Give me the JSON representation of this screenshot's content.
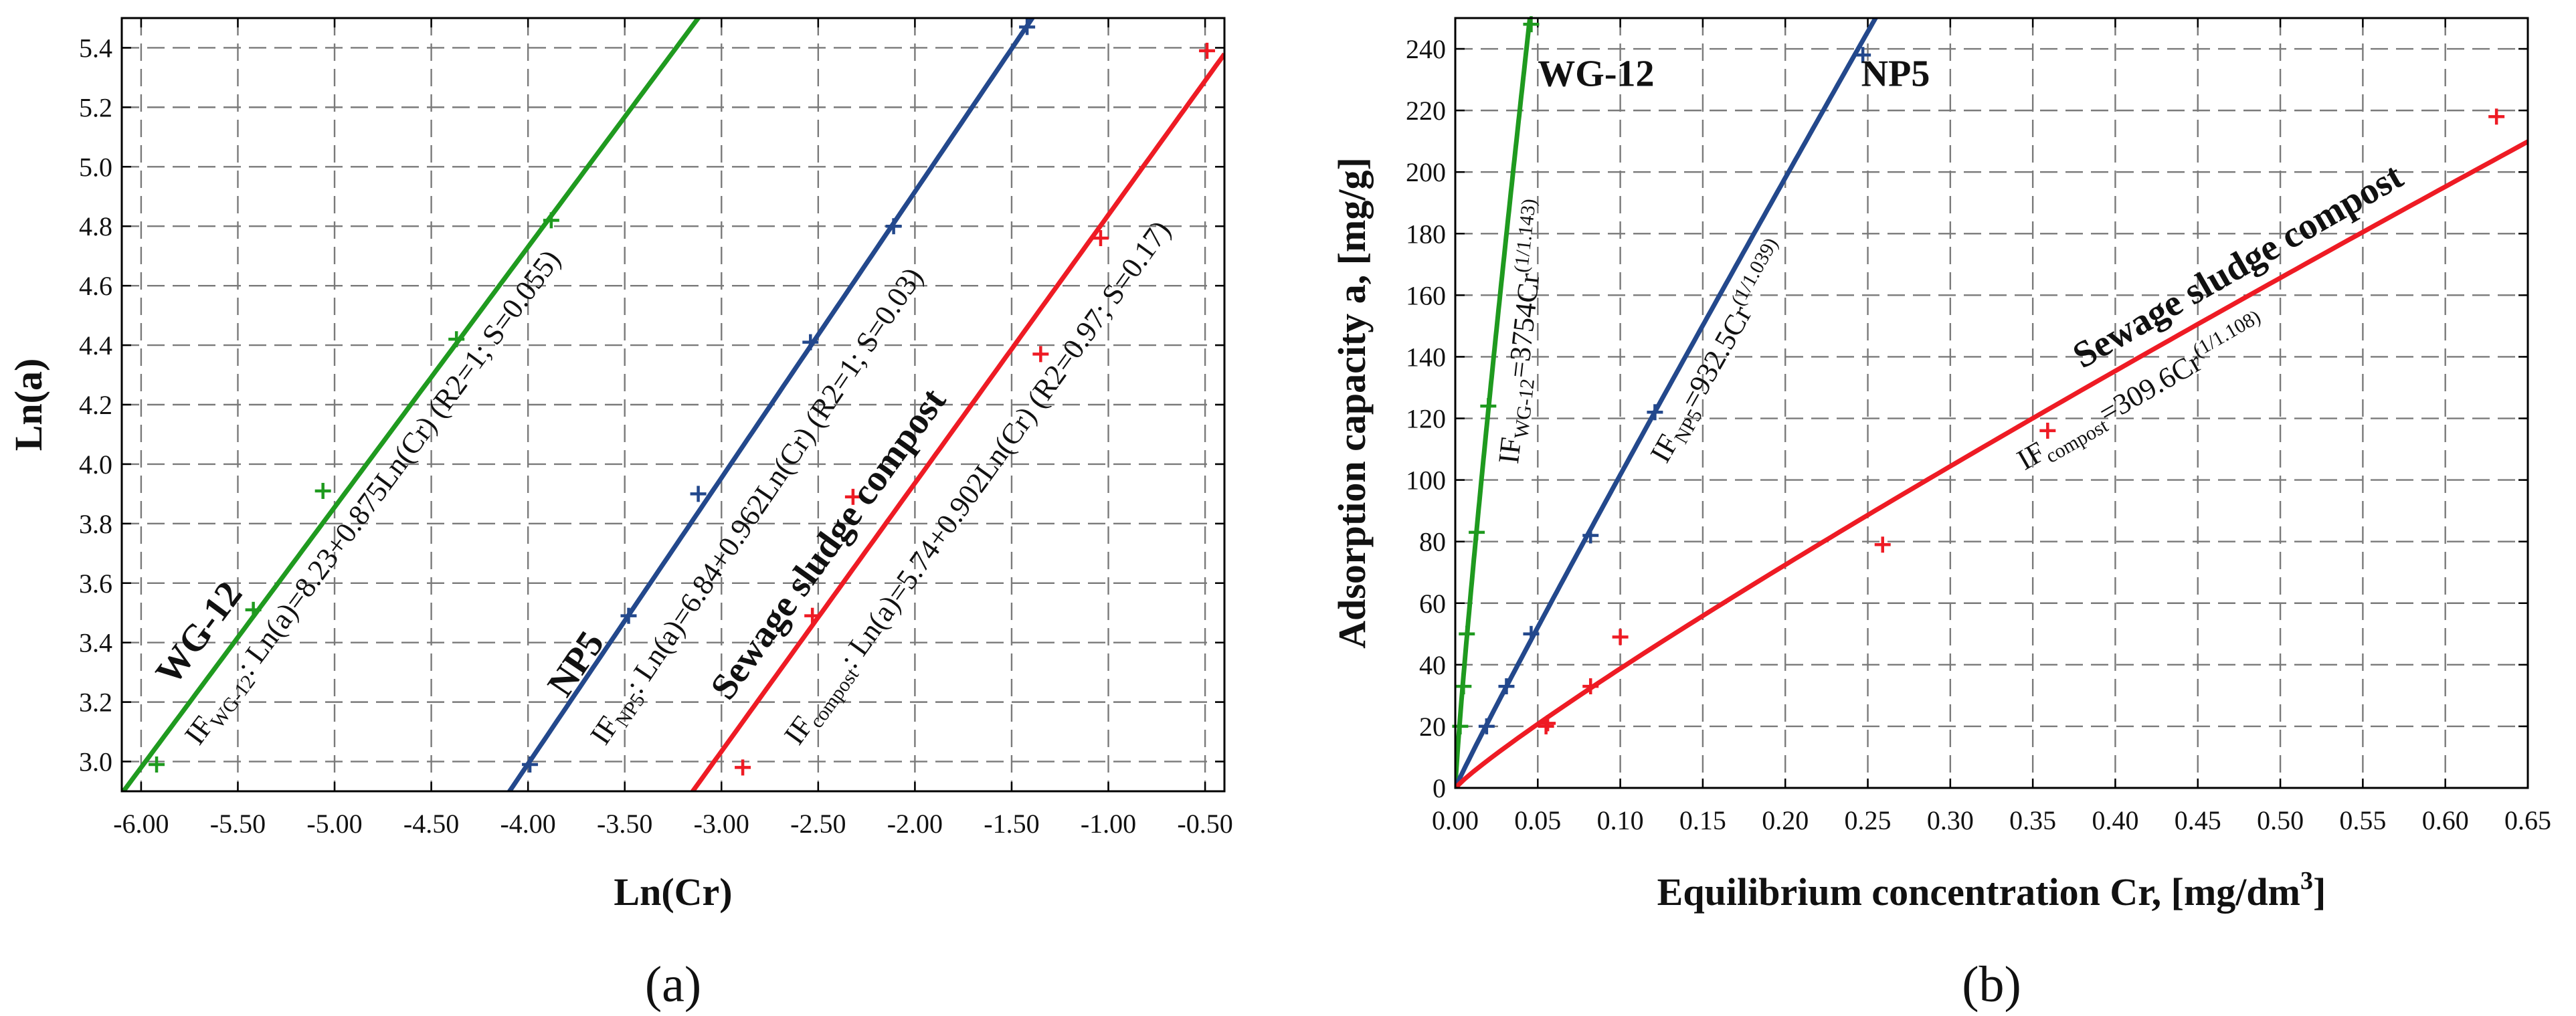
{
  "colors": {
    "WG-12": "#1f9a1f",
    "NP5": "#23488c",
    "compost": "#ee1b24"
  },
  "chart_data": [
    {
      "type": "scatter",
      "panel_label": "(a)",
      "title": "",
      "xlabel": "Ln(Cr)",
      "ylabel": "Ln(a)",
      "xlim": [
        -6.1,
        -0.4
      ],
      "ylim": [
        2.9,
        5.5
      ],
      "xticks": [
        -6.0,
        -5.5,
        -5.0,
        -4.5,
        -4.0,
        -3.5,
        -3.0,
        -2.5,
        -2.0,
        -1.5,
        -1.0,
        -0.5
      ],
      "xtick_labels": [
        "-6.00",
        "-5.50",
        "-5.00",
        "-4.50",
        "-4.00",
        "-3.50",
        "-3.00",
        "-2.50",
        "-2.00",
        "-1.50",
        "-1.00",
        "-0.50"
      ],
      "yticks": [
        3.0,
        3.2,
        3.4,
        3.6,
        3.8,
        4.0,
        4.2,
        4.4,
        4.6,
        4.8,
        5.0,
        5.2,
        5.4
      ],
      "ytick_labels": [
        "3.0",
        "3.2",
        "3.4",
        "3.6",
        "3.8",
        "4.0",
        "4.2",
        "4.4",
        "4.6",
        "4.8",
        "5.0",
        "5.2",
        "5.4"
      ],
      "grid": true,
      "series": [
        {
          "name": "WG-12",
          "color_key": "WG-12",
          "points": [
            [
              -5.92,
              2.99
            ],
            [
              -5.42,
              3.51
            ],
            [
              -5.06,
              3.91
            ],
            [
              -4.37,
              4.42
            ],
            [
              -3.88,
              4.82
            ]
          ],
          "fit": {
            "intercept": 8.23,
            "slope": 0.875,
            "x_from": -6.1,
            "x_to": -2.8
          },
          "label": "WG-12",
          "label_at": [
            -5.83,
            3.25
          ],
          "equation_at": [
            -5.7,
            3.05
          ],
          "equation": {
            "prefix": "IF",
            "subscript": "WG-12",
            "suffix": ": Ln(a)=8.23+0.875Ln(Cr) (R2=1; S=0.055)"
          }
        },
        {
          "name": "NP5",
          "color_key": "NP5",
          "points": [
            [
              -3.99,
              2.99
            ],
            [
              -3.48,
              3.49
            ],
            [
              -3.12,
              3.9
            ],
            [
              -2.54,
              4.41
            ],
            [
              -2.11,
              4.8
            ],
            [
              -1.42,
              5.47
            ]
          ],
          "fit": {
            "intercept": 6.84,
            "slope": 0.962,
            "x_from": -4.1,
            "x_to": -1.35
          },
          "label": "NP5",
          "label_at": [
            -3.8,
            3.21
          ],
          "equation_at": [
            -3.6,
            3.05
          ],
          "equation": {
            "prefix": "IF",
            "subscript": "NP5",
            "suffix": ": Ln(a)=6.84+0.962Ln(Cr) (R2=1; S=0.03)"
          }
        },
        {
          "name": "Sewage sludge compost",
          "color_key": "compost",
          "points": [
            [
              -2.89,
              2.98
            ],
            [
              -2.53,
              3.49
            ],
            [
              -2.32,
              3.89
            ],
            [
              -1.35,
              4.37
            ],
            [
              -1.04,
              4.76
            ],
            [
              -0.49,
              5.39
            ]
          ],
          "fit": {
            "intercept": 5.74,
            "slope": 0.902,
            "x_from": -3.15,
            "x_to": -0.4
          },
          "label": "Sewage sludge compost",
          "label_at": [
            -2.96,
            3.2
          ],
          "equation_at": [
            -2.6,
            3.05
          ],
          "equation": {
            "prefix": "IF",
            "subscript": "compost",
            "suffix": ": Ln(a)=5.74+0.902Ln(Cr) (R2=0.97; S=0.17)"
          }
        }
      ]
    },
    {
      "type": "scatter",
      "panel_label": "(b)",
      "title": "",
      "xlabel": "Equilibrium concentration Cr, [mg/dm",
      "xlabel_superscript": "3",
      "xlabel_end": "]",
      "ylabel": "Adsorption capacity a, [mg/g]",
      "xlim": [
        0,
        0.65
      ],
      "ylim": [
        0,
        250
      ],
      "xticks": [
        0,
        0.05,
        0.1,
        0.15,
        0.2,
        0.25,
        0.3,
        0.35,
        0.4,
        0.45,
        0.5,
        0.55,
        0.6,
        0.65
      ],
      "xtick_labels": [
        "0.00",
        "0.05",
        "0.10",
        "0.15",
        "0.20",
        "0.25",
        "0.30",
        "0.35",
        "0.40",
        "0.45",
        "0.50",
        "0.55",
        "0.60",
        "0.65"
      ],
      "yticks": [
        0,
        20,
        40,
        60,
        80,
        100,
        120,
        140,
        160,
        180,
        200,
        220,
        240
      ],
      "ytick_labels": [
        "0",
        "20",
        "40",
        "60",
        "80",
        "100",
        "120",
        "140",
        "160",
        "180",
        "200",
        "220",
        "240"
      ],
      "grid": true,
      "series": [
        {
          "name": "WG-12",
          "color_key": "WG-12",
          "points": [
            [
              0.003,
              20
            ],
            [
              0.005,
              33
            ],
            [
              0.007,
              50
            ],
            [
              0.013,
              83
            ],
            [
              0.02,
              124
            ],
            [
              0.046,
              248
            ]
          ],
          "fit": {
            "coef": 3754,
            "exponent": 0.8749,
            "x_from": 0,
            "x_to": 0.05
          },
          "label": "WG-12",
          "label_at": [
            0.05,
            228
          ],
          "equation_at": [
            0.038,
            105
          ],
          "equation": {
            "prefix": "IF",
            "subscript": "WG-12",
            "suffix": "=3754Cr",
            "superscript": "(1/1.143)"
          }
        },
        {
          "name": "NP5",
          "color_key": "NP5",
          "points": [
            [
              0.019,
              20
            ],
            [
              0.031,
              33
            ],
            [
              0.046,
              50
            ],
            [
              0.082,
              82
            ],
            [
              0.121,
              122
            ],
            [
              0.247,
              238
            ]
          ],
          "fit": {
            "coef": 932.5,
            "exponent": 0.9625,
            "x_from": 0,
            "x_to": 0.255
          },
          "label": "NP5",
          "label_at": [
            0.246,
            228
          ],
          "equation_at": [
            0.128,
            105
          ],
          "equation": {
            "prefix": "IF",
            "subscript": "NP5",
            "suffix": "=932.5Cr",
            "superscript": "(1/1.039)"
          }
        },
        {
          "name": "Sewage sludge compost",
          "color_key": "compost",
          "points": [
            [
              0.055,
              20
            ],
            [
              0.056,
              21
            ],
            [
              0.082,
              33
            ],
            [
              0.1,
              49
            ],
            [
              0.259,
              79
            ],
            [
              0.359,
              116
            ],
            [
              0.631,
              218
            ]
          ],
          "fit": {
            "coef": 309.6,
            "exponent": 0.9025,
            "x_from": 0,
            "x_to": 0.65
          },
          "label": "Sewage sludge compost",
          "label_at": [
            0.38,
            136
          ],
          "equation_at": [
            0.345,
            103
          ],
          "equation": {
            "prefix": "IF",
            "subscript": "compost",
            "suffix": "=309.6Cr",
            "superscript": "(1/1.108)"
          }
        }
      ]
    }
  ]
}
